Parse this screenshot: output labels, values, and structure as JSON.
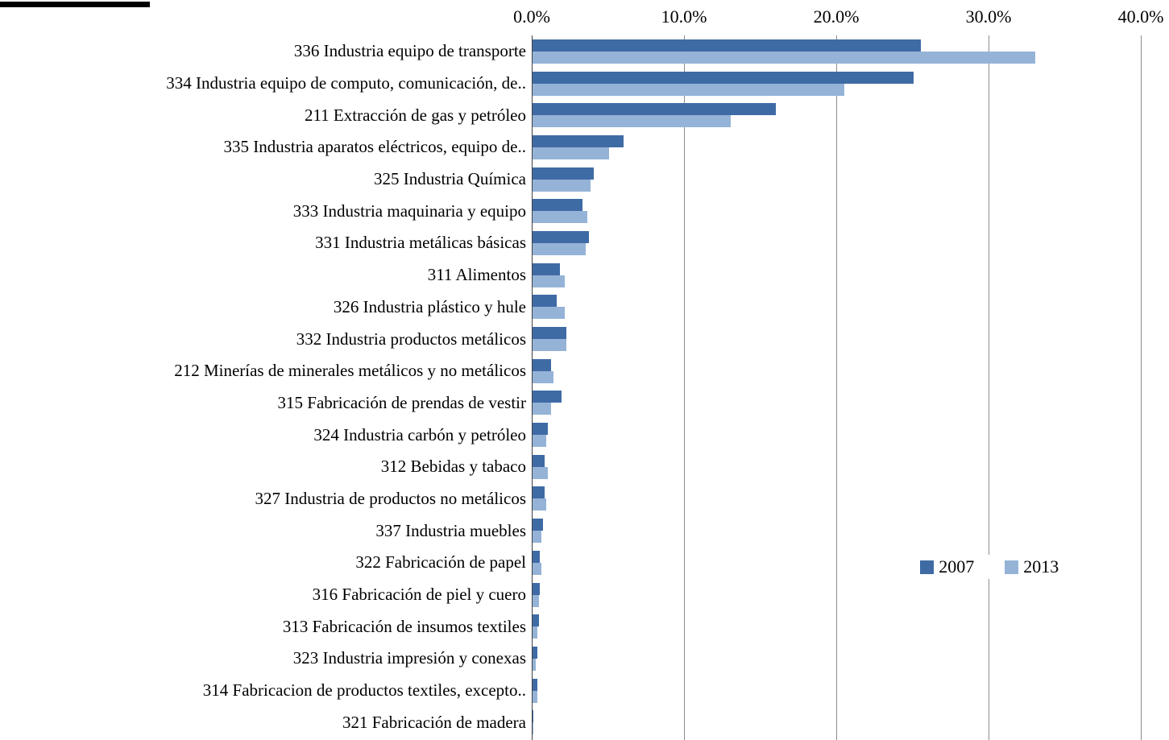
{
  "chart_data": {
    "type": "bar",
    "orientation": "horizontal",
    "title": "",
    "xlabel": "",
    "ylabel": "",
    "xlim": [
      0,
      40
    ],
    "x_ticks": [
      "0.0%",
      "10.0%",
      "20.0%",
      "30.0%",
      "40.0%"
    ],
    "x_tick_values": [
      0,
      10,
      20,
      30,
      40
    ],
    "grid": "vertical-major",
    "legend_position": "inside-middle-right",
    "categories": [
      "336 Industria equipo de transporte",
      "334 Industria equipo de computo, comunicación, de..",
      "211 Extracción de gas y petróleo",
      "335 Industria aparatos eléctricos,  equipo de..",
      "325 Industria Química",
      "333 Industria maquinaria y equipo",
      "331 Industria metálicas básicas",
      "311  Alimentos",
      "326 Industria plástico y hule",
      "332 Industria productos metálicos",
      "212 Minerías de minerales metálicos y no metálicos",
      "315  Fabricación de prendas de vestir",
      "324 Industria carbón y petróleo",
      "312 Bebidas y tabaco",
      "327 Industria de productos no metálicos",
      "337  Industria muebles",
      "322 Fabricación de papel",
      "316 Fabricación de piel y cuero",
      "313  Fabricación de insumos textiles",
      "323 Industria impresión y conexas",
      "314  Fabricacion de productos textiles, excepto..",
      "321 Fabricación de madera"
    ],
    "series": [
      {
        "name": "2007",
        "color": "#3f6ba5",
        "values": [
          25.5,
          25.0,
          16.0,
          6.0,
          4.0,
          3.3,
          3.7,
          1.8,
          1.6,
          2.2,
          1.2,
          1.9,
          1.0,
          0.8,
          0.8,
          0.7,
          0.5,
          0.5,
          0.4,
          0.3,
          0.3,
          0.05
        ]
      },
      {
        "name": "2013",
        "color": "#95b3d7",
        "values": [
          33.0,
          20.5,
          13.0,
          5.0,
          3.8,
          3.6,
          3.5,
          2.1,
          2.1,
          2.2,
          1.4,
          1.2,
          0.9,
          1.0,
          0.9,
          0.6,
          0.6,
          0.4,
          0.3,
          0.2,
          0.3,
          0.05
        ]
      }
    ]
  }
}
